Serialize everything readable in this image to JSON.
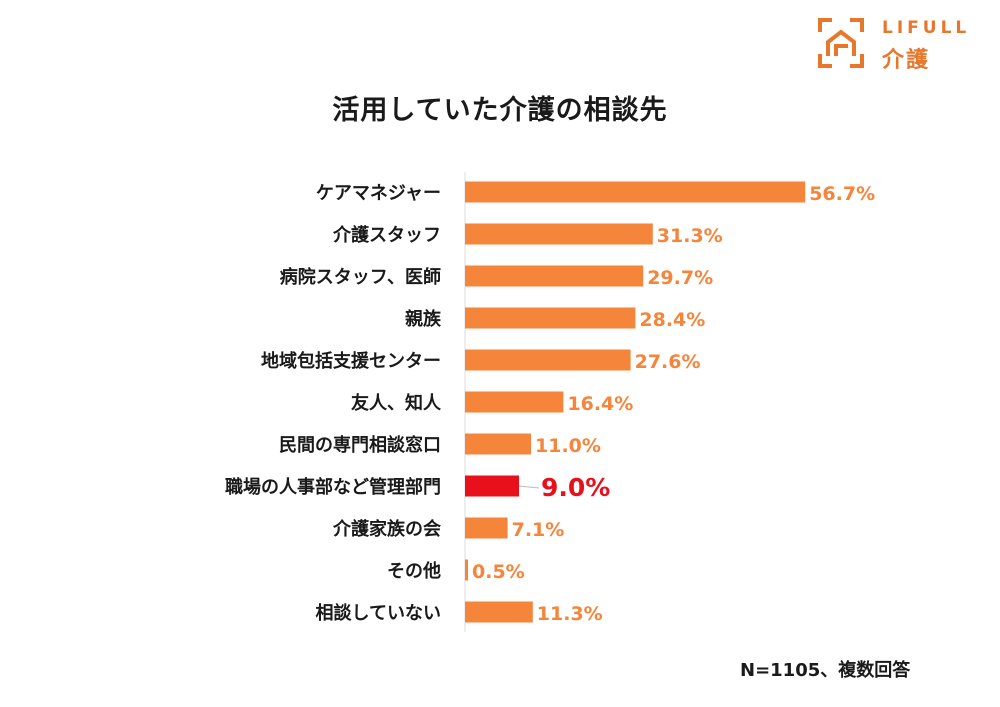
{
  "brand": {
    "name": "LIFULL",
    "sub": "介護",
    "color": "#e8772e"
  },
  "note": "N=1105、複数回答",
  "colors": {
    "bar": "#f5853a",
    "highlight": "#e8101a",
    "axis": "#dddddd"
  },
  "chart_data": {
    "type": "bar",
    "orientation": "horizontal",
    "title": "活用していた介護の相談先",
    "xlabel": "",
    "ylabel": "",
    "xlim": [
      0,
      60
    ],
    "grid": false,
    "categories": [
      "ケアマネジャー",
      "介護スタッフ",
      "病院スタッフ、医師",
      "親族",
      "地域包括支援センター",
      "友人、知人",
      "民間の専門相談窓口",
      "職場の人事部など管理部門",
      "介護家族の会",
      "その他",
      "相談していない"
    ],
    "values": [
      56.7,
      31.3,
      29.7,
      28.4,
      27.6,
      16.4,
      11.0,
      9.0,
      7.1,
      0.5,
      11.3
    ],
    "value_labels": [
      "56.7%",
      "31.3%",
      "29.7%",
      "28.4%",
      "27.6%",
      "16.4%",
      "11.0%",
      "9.0%",
      "7.1%",
      "0.5%",
      "11.3%"
    ],
    "highlight_index": 7
  }
}
